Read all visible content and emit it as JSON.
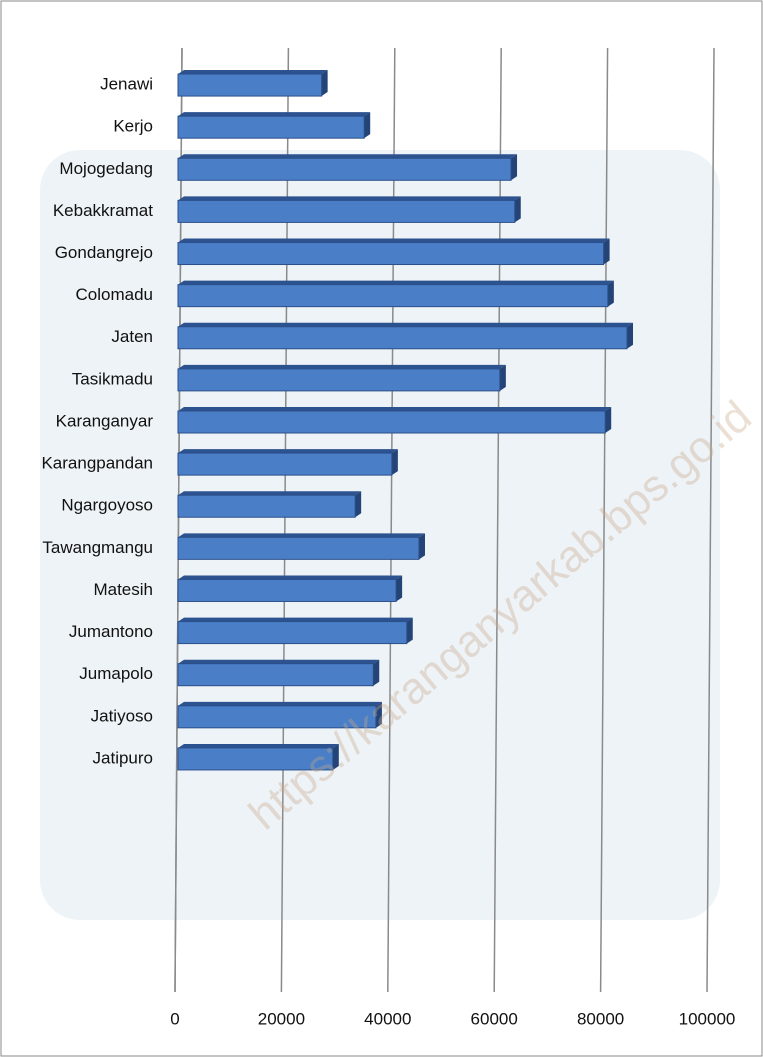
{
  "chart_data": {
    "type": "bar",
    "orientation": "horizontal",
    "watermark": "https://karanganyarkab.bps.go.id",
    "categories": [
      "Jenawi",
      "Kerjo",
      "Mojogedang",
      "Kebakkramat",
      "Gondangrejo",
      "Colomadu",
      "Jaten",
      "Tasikmadu",
      "Karanganyar",
      "Karangpandan",
      "Ngargoyoso",
      "Tawangmangu",
      "Matesih",
      "Jumantono",
      "Jumapolo",
      "Jatiyoso",
      "Jatipuro"
    ],
    "values": [
      27000,
      35000,
      62600,
      63300,
      80000,
      80800,
      84400,
      60500,
      80300,
      40200,
      33300,
      45300,
      41000,
      43000,
      36700,
      37200,
      29100
    ],
    "color": "#4a7fc8",
    "xlim": [
      0,
      100000
    ],
    "xticks": [
      0,
      20000,
      40000,
      60000,
      80000,
      100000
    ],
    "grid": true
  }
}
